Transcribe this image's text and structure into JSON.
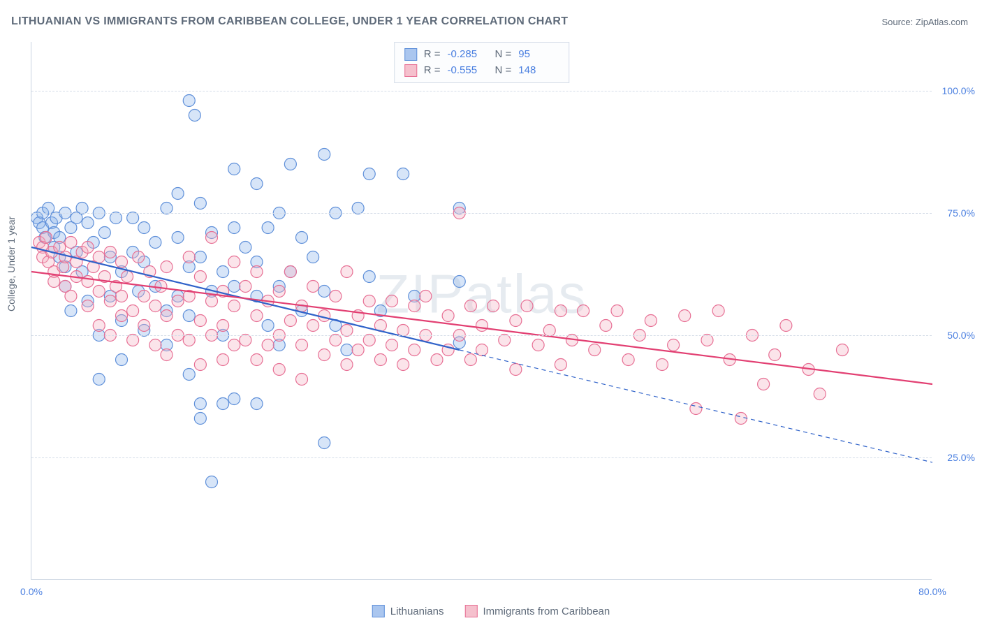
{
  "title": "LITHUANIAN VS IMMIGRANTS FROM CARIBBEAN COLLEGE, UNDER 1 YEAR CORRELATION CHART",
  "source_label": "Source: ",
  "source_name": "ZipAtlas.com",
  "watermark": "ZIPatlas",
  "y_axis_title": "College, Under 1 year",
  "chart": {
    "type": "scatter",
    "background_color": "#ffffff",
    "grid_color": "#d5dde8",
    "axis_color": "#c9d3e0",
    "xlim": [
      0,
      80
    ],
    "ylim": [
      0,
      110
    ],
    "x_ticks": [
      0,
      80
    ],
    "x_tick_labels": [
      "0.0%",
      "80.0%"
    ],
    "y_ticks": [
      25,
      50,
      75,
      100
    ],
    "y_tick_labels": [
      "25.0%",
      "50.0%",
      "75.0%",
      "100.0%"
    ],
    "marker_radius": 8.5,
    "marker_fill_opacity": 0.35,
    "marker_stroke_width": 1.2,
    "line_width_solid": 2.2,
    "line_width_dashed": 1.2,
    "dash_pattern": "6 5",
    "label_fontsize": 14,
    "tick_color": "#4a7fe0",
    "text_color": "#5f6b7a"
  },
  "legend_top": {
    "r_label": "R =",
    "n_label": "N =",
    "rows": [
      {
        "swatch_fill": "#aac6ef",
        "swatch_border": "#5e8fd9",
        "r": "-0.285",
        "n": "95"
      },
      {
        "swatch_fill": "#f5c0cd",
        "swatch_border": "#e76f94",
        "r": "-0.555",
        "n": "148"
      }
    ]
  },
  "legend_bottom": {
    "items": [
      {
        "label": "Lithuanians",
        "fill": "#aac6ef",
        "border": "#5e8fd9"
      },
      {
        "label": "Immigrants from Caribbean",
        "fill": "#f5c0cd",
        "border": "#e76f94"
      }
    ]
  },
  "series": [
    {
      "name": "Lithuanians",
      "color_fill": "#8db5ea",
      "color_stroke": "#5e8fd9",
      "regression": {
        "x1": 0,
        "y1": 68,
        "x_solid_end": 38,
        "y_solid_end": 47,
        "x2": 80,
        "y2": 24,
        "dashed_after_solid": true,
        "line_color": "#2f62c9"
      },
      "points": [
        [
          0.5,
          74
        ],
        [
          0.7,
          73
        ],
        [
          1,
          75
        ],
        [
          1,
          72
        ],
        [
          1.2,
          70
        ],
        [
          1.5,
          76
        ],
        [
          1.8,
          73
        ],
        [
          2,
          71
        ],
        [
          2,
          68
        ],
        [
          2.2,
          74
        ],
        [
          2.5,
          70
        ],
        [
          2.5,
          66
        ],
        [
          3,
          75
        ],
        [
          3,
          64
        ],
        [
          3,
          60
        ],
        [
          3.5,
          72
        ],
        [
          3.5,
          55
        ],
        [
          4,
          74
        ],
        [
          4,
          67
        ],
        [
          4.5,
          76
        ],
        [
          4.5,
          63
        ],
        [
          5,
          73
        ],
        [
          5,
          57
        ],
        [
          5.5,
          69
        ],
        [
          6,
          75
        ],
        [
          6,
          50
        ],
        [
          6,
          41
        ],
        [
          6.5,
          71
        ],
        [
          7,
          66
        ],
        [
          7,
          58
        ],
        [
          7.5,
          74
        ],
        [
          8,
          63
        ],
        [
          8,
          53
        ],
        [
          8,
          45
        ],
        [
          9,
          74
        ],
        [
          9,
          67
        ],
        [
          9.5,
          59
        ],
        [
          10,
          72
        ],
        [
          10,
          65
        ],
        [
          10,
          51
        ],
        [
          11,
          69
        ],
        [
          11,
          60
        ],
        [
          12,
          76
        ],
        [
          12,
          55
        ],
        [
          12,
          48
        ],
        [
          13,
          79
        ],
        [
          13,
          70
        ],
        [
          13,
          58
        ],
        [
          14,
          98
        ],
        [
          14,
          64
        ],
        [
          14,
          54
        ],
        [
          14,
          42
        ],
        [
          14.5,
          95
        ],
        [
          15,
          77
        ],
        [
          15,
          66
        ],
        [
          15,
          36
        ],
        [
          15,
          33
        ],
        [
          16,
          71
        ],
        [
          16,
          59
        ],
        [
          16,
          20
        ],
        [
          17,
          63
        ],
        [
          17,
          50
        ],
        [
          17,
          36
        ],
        [
          18,
          84
        ],
        [
          18,
          72
        ],
        [
          18,
          60
        ],
        [
          18,
          37
        ],
        [
          19,
          68
        ],
        [
          20,
          81
        ],
        [
          20,
          65
        ],
        [
          20,
          58
        ],
        [
          20,
          36
        ],
        [
          21,
          72
        ],
        [
          21,
          52
        ],
        [
          22,
          75
        ],
        [
          22,
          60
        ],
        [
          22,
          48
        ],
        [
          23,
          85
        ],
        [
          23,
          63
        ],
        [
          24,
          70
        ],
        [
          24,
          55
        ],
        [
          25,
          66
        ],
        [
          26,
          87
        ],
        [
          26,
          59
        ],
        [
          26,
          28
        ],
        [
          27,
          75
        ],
        [
          27,
          52
        ],
        [
          28,
          47
        ],
        [
          29,
          76
        ],
        [
          30,
          83
        ],
        [
          30,
          62
        ],
        [
          31,
          55
        ],
        [
          33,
          83
        ],
        [
          34,
          58
        ],
        [
          38,
          76
        ],
        [
          38,
          61
        ],
        [
          38,
          48.5
        ]
      ]
    },
    {
      "name": "Immigrants from Caribbean",
      "color_fill": "#f3b2c4",
      "color_stroke": "#e76f94",
      "regression": {
        "x1": 0,
        "y1": 63,
        "x2": 80,
        "y2": 40,
        "dashed_after_solid": false,
        "line_color": "#e23f72"
      },
      "points": [
        [
          0.7,
          69
        ],
        [
          1,
          68
        ],
        [
          1,
          66
        ],
        [
          1.3,
          70
        ],
        [
          1.5,
          65
        ],
        [
          1.8,
          67
        ],
        [
          2,
          63
        ],
        [
          2,
          61
        ],
        [
          2.5,
          68
        ],
        [
          2.8,
          64
        ],
        [
          3,
          66
        ],
        [
          3,
          60
        ],
        [
          3.5,
          69
        ],
        [
          3.5,
          58
        ],
        [
          4,
          65
        ],
        [
          4,
          62
        ],
        [
          4.5,
          67
        ],
        [
          5,
          68
        ],
        [
          5,
          61
        ],
        [
          5,
          56
        ],
        [
          5.5,
          64
        ],
        [
          6,
          66
        ],
        [
          6,
          59
        ],
        [
          6,
          52
        ],
        [
          6.5,
          62
        ],
        [
          7,
          67
        ],
        [
          7,
          57
        ],
        [
          7,
          50
        ],
        [
          7.5,
          60
        ],
        [
          8,
          65
        ],
        [
          8,
          58
        ],
        [
          8,
          54
        ],
        [
          8.5,
          62
        ],
        [
          9,
          55
        ],
        [
          9,
          49
        ],
        [
          9.5,
          66
        ],
        [
          10,
          58
        ],
        [
          10,
          52
        ],
        [
          10.5,
          63
        ],
        [
          11,
          56
        ],
        [
          11,
          48
        ],
        [
          11.5,
          60
        ],
        [
          12,
          64
        ],
        [
          12,
          54
        ],
        [
          12,
          46
        ],
        [
          13,
          57
        ],
        [
          13,
          50
        ],
        [
          14,
          66
        ],
        [
          14,
          58
        ],
        [
          14,
          49
        ],
        [
          15,
          62
        ],
        [
          15,
          53
        ],
        [
          15,
          44
        ],
        [
          16,
          70
        ],
        [
          16,
          57
        ],
        [
          16,
          50
        ],
        [
          17,
          59
        ],
        [
          17,
          52
        ],
        [
          17,
          45
        ],
        [
          18,
          65
        ],
        [
          18,
          56
        ],
        [
          18,
          48
        ],
        [
          19,
          60
        ],
        [
          19,
          49
        ],
        [
          20,
          63
        ],
        [
          20,
          54
        ],
        [
          20,
          45
        ],
        [
          21,
          57
        ],
        [
          21,
          48
        ],
        [
          22,
          59
        ],
        [
          22,
          50
        ],
        [
          22,
          43
        ],
        [
          23,
          63
        ],
        [
          23,
          53
        ],
        [
          24,
          56
        ],
        [
          24,
          48
        ],
        [
          24,
          41
        ],
        [
          25,
          60
        ],
        [
          25,
          52
        ],
        [
          26,
          54
        ],
        [
          26,
          46
        ],
        [
          27,
          58
        ],
        [
          27,
          49
        ],
        [
          28,
          63
        ],
        [
          28,
          51
        ],
        [
          28,
          44
        ],
        [
          29,
          54
        ],
        [
          29,
          47
        ],
        [
          30,
          57
        ],
        [
          30,
          49
        ],
        [
          31,
          52
        ],
        [
          31,
          45
        ],
        [
          32,
          57
        ],
        [
          32,
          48
        ],
        [
          33,
          51
        ],
        [
          33,
          44
        ],
        [
          34,
          56
        ],
        [
          34,
          47
        ],
        [
          35,
          58
        ],
        [
          35,
          50
        ],
        [
          36,
          45
        ],
        [
          37,
          54
        ],
        [
          37,
          47
        ],
        [
          38,
          75
        ],
        [
          38,
          50
        ],
        [
          39,
          56
        ],
        [
          39,
          45
        ],
        [
          40,
          52
        ],
        [
          40,
          47
        ],
        [
          41,
          56
        ],
        [
          42,
          49
        ],
        [
          43,
          53
        ],
        [
          43,
          43
        ],
        [
          44,
          56
        ],
        [
          45,
          48
        ],
        [
          46,
          51
        ],
        [
          47,
          55
        ],
        [
          47,
          44
        ],
        [
          48,
          49
        ],
        [
          49,
          55
        ],
        [
          50,
          47
        ],
        [
          51,
          52
        ],
        [
          52,
          55
        ],
        [
          53,
          45
        ],
        [
          54,
          50
        ],
        [
          55,
          53
        ],
        [
          56,
          44
        ],
        [
          57,
          48
        ],
        [
          58,
          54
        ],
        [
          59,
          35
        ],
        [
          60,
          49
        ],
        [
          61,
          55
        ],
        [
          62,
          45
        ],
        [
          63,
          33
        ],
        [
          64,
          50
        ],
        [
          65,
          40
        ],
        [
          66,
          46
        ],
        [
          67,
          52
        ],
        [
          69,
          43
        ],
        [
          70,
          38
        ],
        [
          72,
          47
        ]
      ]
    }
  ]
}
